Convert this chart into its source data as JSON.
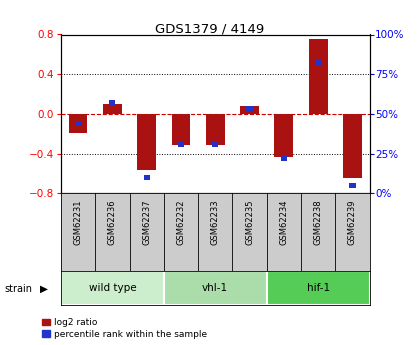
{
  "title": "GDS1379 / 4149",
  "samples": [
    "GSM62231",
    "GSM62236",
    "GSM62237",
    "GSM62232",
    "GSM62233",
    "GSM62235",
    "GSM62234",
    "GSM62238",
    "GSM62239"
  ],
  "log2_ratio": [
    -0.19,
    0.1,
    -0.57,
    -0.31,
    -0.31,
    0.08,
    -0.44,
    0.75,
    -0.65
  ],
  "percentile_rank": [
    44,
    57,
    10,
    31,
    31,
    53,
    22,
    82,
    5
  ],
  "groups": [
    {
      "label": "wild type",
      "start": 0,
      "end": 3,
      "color": "#cceecc"
    },
    {
      "label": "vhl-1",
      "start": 3,
      "end": 6,
      "color": "#aaddaa"
    },
    {
      "label": "hif-1",
      "start": 6,
      "end": 9,
      "color": "#55cc55"
    }
  ],
  "ylim_left": [
    -0.8,
    0.8
  ],
  "ylim_right": [
    0,
    100
  ],
  "yticks_left": [
    -0.8,
    -0.4,
    0.0,
    0.4,
    0.8
  ],
  "yticks_right": [
    0,
    25,
    50,
    75,
    100
  ],
  "bar_color": "#aa1111",
  "rank_color": "#2233cc",
  "background_color": "#ffffff",
  "zero_line_color": "#cc0000",
  "grid_color": "#000000",
  "bar_width": 0.55,
  "rank_bar_width": 0.18,
  "label_bg": "#cccccc"
}
